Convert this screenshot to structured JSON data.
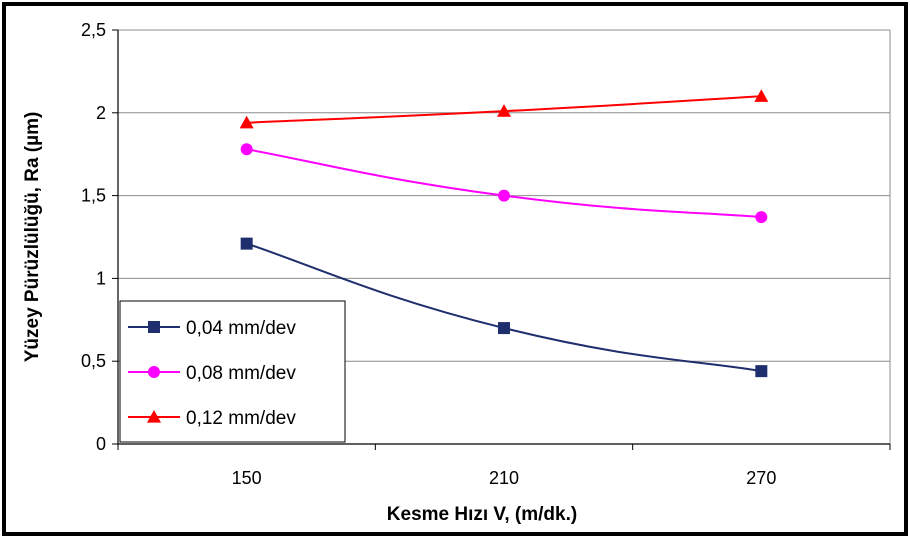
{
  "chart_data": {
    "type": "line",
    "title": "",
    "xlabel": "Kesme Hızı V, (m/dk.)",
    "ylabel": "Yüzey Pürüzlülüğü, Ra (µm)",
    "categories": [
      "150",
      "210",
      "270"
    ],
    "ylim": [
      0,
      2.5
    ],
    "yticks": [
      "0",
      "0,5",
      "1",
      "1,5",
      "2",
      "2,5"
    ],
    "grid": true,
    "legend_position": "bottom-left",
    "series": [
      {
        "name": "0,04 mm/dev",
        "values": [
          1.21,
          0.7,
          0.44
        ],
        "color": "#1f2f6e",
        "marker": "square"
      },
      {
        "name": "0,08 mm/dev",
        "values": [
          1.78,
          1.5,
          1.37
        ],
        "color": "#ff00ff",
        "marker": "circle"
      },
      {
        "name": "0,12 mm/dev",
        "values": [
          1.94,
          2.01,
          2.1
        ],
        "color": "#ff0000",
        "marker": "triangle"
      }
    ]
  }
}
